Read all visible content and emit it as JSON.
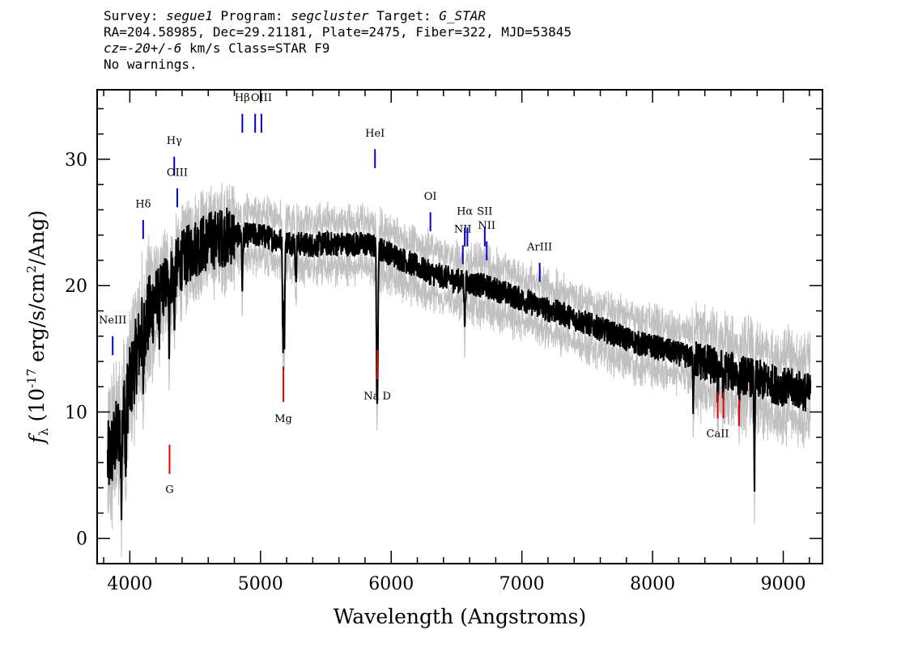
{
  "header": {
    "survey_label": "Survey: ",
    "survey": "segue1",
    "program_label": " Program: ",
    "program": "segcluster",
    "target_label": " Target: ",
    "target": "G_STAR",
    "line2": "RA=204.58985, Dec=29.21181, Plate=2475, Fiber=322, MJD=53845",
    "cz": "cz=",
    "cz_value": "-20+/-6",
    "cz_tail": " km/s Class=STAR F9",
    "warnings": "No warnings."
  },
  "colors": {
    "flux": "#000000",
    "error_band": "#c0c0c0",
    "emission": "#0000cc",
    "absorption": "#ee0000"
  },
  "chart_data": {
    "type": "line",
    "xlabel": "Wavelength (Angstroms)",
    "ylabel": "f_λ (10^-17 erg/s/cm^2/Ang)",
    "ylabel_parts": {
      "f": "f",
      "lambda": "λ",
      "open": " (10",
      "exp": "-17",
      "mid": " erg/s/cm",
      "sq": "2",
      "close": "/Ang)"
    },
    "xlim": [
      3750,
      9300
    ],
    "ylim": [
      -2,
      35.5
    ],
    "x_ticks": [
      4000,
      5000,
      6000,
      7000,
      8000,
      9000
    ],
    "x_tick_labels": [
      "4000",
      "5000",
      "6000",
      "7000",
      "8000",
      "9000"
    ],
    "y_ticks": [
      0,
      10,
      20,
      30
    ],
    "y_tick_labels": [
      "0",
      "10",
      "20",
      "30"
    ],
    "grid": false,
    "continuum": {
      "x": [
        3830,
        3900,
        3950,
        4000,
        4050,
        4100,
        4200,
        4300,
        4400,
        4500,
        4600,
        4700,
        4800,
        4900,
        5000,
        5100,
        5200,
        5300,
        5400,
        5500,
        5600,
        5700,
        5800,
        5900,
        6000,
        6100,
        6200,
        6300,
        6400,
        6500,
        6600,
        6700,
        6800,
        6900,
        7000,
        7100,
        7200,
        7300,
        7400,
        7500,
        7600,
        7700,
        7800,
        7900,
        8000,
        8100,
        8200,
        8300,
        8400,
        8500,
        8600,
        8700,
        8800,
        8900,
        9000,
        9100,
        9200
      ],
      "y": [
        6,
        8,
        10,
        12,
        14.5,
        16.5,
        19,
        20.5,
        22,
        23,
        23.5,
        23.8,
        24,
        24,
        24,
        23.7,
        23.5,
        23.3,
        23.2,
        23.3,
        23.3,
        23.3,
        23.3,
        23.0,
        22.5,
        22.0,
        21.5,
        21.0,
        20.7,
        20.4,
        20.2,
        20.0,
        19.7,
        19.3,
        18.9,
        18.5,
        18.1,
        17.8,
        17.4,
        17.0,
        16.6,
        16.2,
        15.8,
        15.4,
        15.2,
        14.9,
        14.6,
        14.3,
        13.9,
        13.5,
        13.2,
        12.9,
        12.6,
        12.3,
        12.0,
        11.8,
        11.5
      ]
    },
    "absorption_features": [
      {
        "x": 3934,
        "depth": 6
      },
      {
        "x": 3969,
        "depth": 6
      },
      {
        "x": 4102,
        "depth": 4
      },
      {
        "x": 4227,
        "depth": 3
      },
      {
        "x": 4300,
        "depth": 5
      },
      {
        "x": 4340,
        "depth": 4
      },
      {
        "x": 4861,
        "depth": 4
      },
      {
        "x": 5172,
        "depth": 8
      },
      {
        "x": 5183,
        "depth": 8
      },
      {
        "x": 5270,
        "depth": 3
      },
      {
        "x": 5890,
        "depth": 10
      },
      {
        "x": 5896,
        "depth": 9
      },
      {
        "x": 6563,
        "depth": 3
      },
      {
        "x": 8310,
        "depth": 3
      },
      {
        "x": 8498,
        "depth": 2
      },
      {
        "x": 8542,
        "depth": 2
      },
      {
        "x": 8662,
        "depth": 2
      },
      {
        "x": 8780,
        "depth": 8
      }
    ],
    "emission_lines": [
      {
        "label": "NeIII",
        "x": 3869,
        "text_y": 17.0,
        "y1": 16.0,
        "y2": 14.5
      },
      {
        "label": "Hδ",
        "x": 4102,
        "text_y": 26.2,
        "y1": 25.2,
        "y2": 23.7
      },
      {
        "label": "Hγ",
        "x": 4340,
        "text_y": 31.2,
        "y1": 30.2,
        "y2": 28.7
      },
      {
        "label": "OIII",
        "x": 4363,
        "text_y": 28.7,
        "y1": 27.7,
        "y2": 26.2
      },
      {
        "label": "Hβ",
        "x": 4861,
        "text_y": 34.6,
        "y1": 33.6,
        "y2": 32.1
      },
      {
        "label": "OIII",
        "x": 4959,
        "text_y": null,
        "y1": 33.6,
        "y2": 32.1
      },
      {
        "label": "OIII",
        "x": 5007,
        "text_y": 34.6,
        "y1": 33.6,
        "y2": 32.1
      },
      {
        "label": "HeI",
        "x": 5876,
        "text_y": 31.8,
        "y1": 30.8,
        "y2": 29.3
      },
      {
        "label": "OI",
        "x": 6300,
        "text_y": 26.8,
        "y1": 25.8,
        "y2": 24.3
      },
      {
        "label": "NII",
        "x": 6548,
        "text_y": 24.2,
        "y1": 23.2,
        "y2": 21.7
      },
      {
        "label": "Hα",
        "x": 6563,
        "text_y": 25.6,
        "y1": 24.6,
        "y2": 23.1
      },
      {
        "label": "NII",
        "x": 6583,
        "text_y": null,
        "y1": 24.6,
        "y2": 23.1
      },
      {
        "label": "SII",
        "x": 6716,
        "text_y": 25.6,
        "y1": 24.6,
        "y2": 23.1
      },
      {
        "label": "NII",
        "x": 6731,
        "text_y": 24.5,
        "y1": 23.5,
        "y2": 22.0
      },
      {
        "label": "ArIII",
        "x": 7136,
        "text_y": 22.8,
        "y1": 21.8,
        "y2": 20.3
      }
    ],
    "absorption_lines": [
      {
        "label": "G",
        "x": 4304,
        "text_y": 3.6,
        "y1": 5.1,
        "y2": 7.4
      },
      {
        "label": "Mg",
        "x": 5175,
        "text_y": 9.2,
        "y1": 10.8,
        "y2": 13.6
      },
      {
        "label": "Na D",
        "x": 5894,
        "text_y": 11.0,
        "y1": 12.6,
        "y2": 14.9
      },
      {
        "label": "CaII",
        "x": 8498,
        "text_y": 8.0,
        "y1": null,
        "y2": null
      },
      {
        "label": "CaII",
        "x": 8542,
        "text_y": null,
        "y1": 9.5,
        "y2": 11.6
      },
      {
        "label": "CaII",
        "x": 8662,
        "text_y": null,
        "y1": 8.9,
        "y2": 11.0
      }
    ]
  }
}
